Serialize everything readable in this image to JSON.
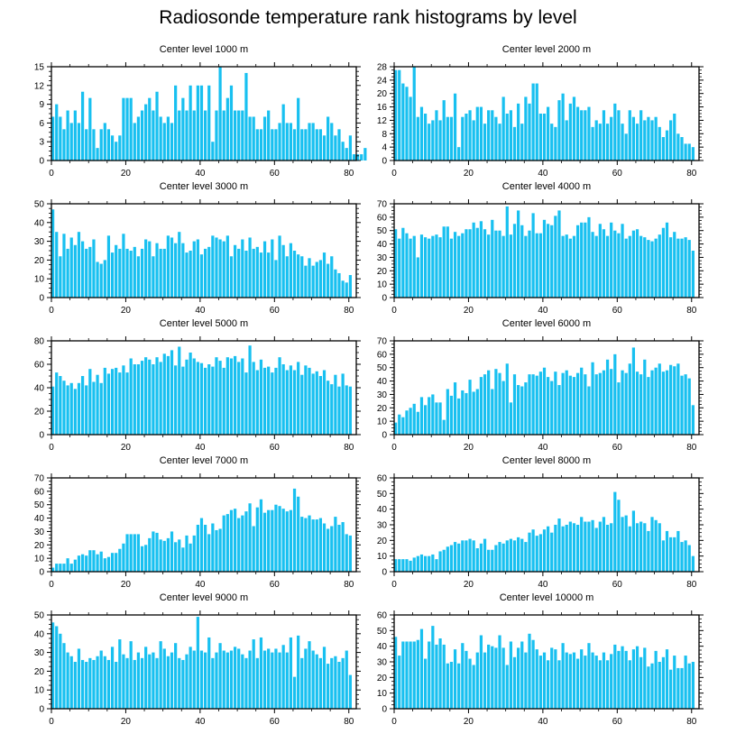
{
  "figure": {
    "title": "Radiosonde temperature rank histograms by level",
    "bar_color": "#18c0f0"
  },
  "chart_data": [
    {
      "type": "bar",
      "title": "Center level 1000 m",
      "xlim": [
        0,
        82
      ],
      "ylim": [
        0,
        15
      ],
      "yticks": [
        0,
        3,
        6,
        9,
        12,
        15
      ],
      "xticks": [
        0,
        20,
        40,
        60,
        80
      ],
      "values": [
        7,
        9,
        7,
        5,
        8,
        6,
        8,
        6,
        11,
        5,
        10,
        5,
        2,
        5,
        6,
        5,
        4,
        3,
        4,
        10,
        10,
        10,
        6,
        7,
        8,
        9,
        10,
        8,
        11,
        7,
        6,
        7,
        6,
        12,
        8,
        10,
        8,
        12,
        8,
        12,
        12,
        8,
        12,
        3,
        8,
        15,
        8,
        10,
        12,
        8,
        8,
        8,
        14,
        7,
        7,
        5,
        5,
        7,
        8,
        5,
        5,
        6,
        9,
        6,
        6,
        5,
        10,
        5,
        5,
        6,
        6,
        5,
        5,
        4,
        7,
        6,
        4,
        5,
        3,
        2,
        4,
        1,
        1,
        1,
        2
      ]
    },
    {
      "type": "bar",
      "title": "Center level 2000 m",
      "xlim": [
        0,
        82
      ],
      "ylim": [
        0,
        28
      ],
      "yticks": [
        0,
        4,
        8,
        12,
        16,
        20,
        24,
        28
      ],
      "xticks": [
        0,
        20,
        40,
        60,
        80
      ],
      "values": [
        27,
        27,
        23,
        22,
        19,
        28,
        13,
        16,
        14,
        11,
        12,
        15,
        12,
        18,
        13,
        13,
        20,
        4,
        13,
        14,
        15,
        12,
        16,
        16,
        11,
        15,
        15,
        13,
        11,
        19,
        14,
        15,
        10,
        17,
        11,
        19,
        17,
        23,
        23,
        14,
        14,
        16,
        11,
        10,
        18,
        20,
        12,
        17,
        19,
        16,
        15,
        15,
        16,
        10,
        12,
        11,
        15,
        11,
        13,
        17,
        15,
        11,
        8,
        15,
        13,
        11,
        15,
        12,
        13,
        12,
        13,
        10,
        7,
        9,
        12,
        14,
        8,
        7,
        5,
        5,
        4
      ]
    },
    {
      "type": "bar",
      "title": "Center level 3000 m",
      "xlim": [
        0,
        82
      ],
      "ylim": [
        0,
        50
      ],
      "yticks": [
        0,
        10,
        20,
        30,
        40,
        50
      ],
      "xticks": [
        0,
        20,
        40,
        60,
        80
      ],
      "values": [
        47,
        35,
        22,
        34,
        26,
        32,
        28,
        35,
        30,
        26,
        27,
        31,
        19,
        18,
        20,
        33,
        24,
        28,
        26,
        34,
        26,
        25,
        27,
        22,
        26,
        31,
        30,
        22,
        29,
        26,
        26,
        33,
        32,
        29,
        35,
        29,
        24,
        25,
        30,
        31,
        23,
        26,
        27,
        33,
        32,
        31,
        30,
        33,
        22,
        28,
        26,
        31,
        25,
        32,
        26,
        27,
        24,
        30,
        24,
        31,
        20,
        33,
        28,
        22,
        29,
        25,
        23,
        22,
        17,
        21,
        17,
        19,
        20,
        24,
        18,
        22,
        15,
        13,
        9,
        8,
        12
      ]
    },
    {
      "type": "bar",
      "title": "Center level 4000 m",
      "xlim": [
        0,
        82
      ],
      "ylim": [
        0,
        70
      ],
      "yticks": [
        0,
        10,
        20,
        30,
        40,
        50,
        60,
        70
      ],
      "xticks": [
        0,
        20,
        40,
        60,
        80
      ],
      "values": [
        51,
        44,
        52,
        48,
        44,
        46,
        30,
        47,
        45,
        44,
        46,
        47,
        45,
        53,
        53,
        44,
        49,
        46,
        48,
        51,
        51,
        56,
        52,
        57,
        51,
        47,
        58,
        50,
        50,
        46,
        68,
        47,
        55,
        65,
        54,
        46,
        50,
        63,
        48,
        48,
        58,
        55,
        54,
        61,
        65,
        46,
        47,
        44,
        46,
        54,
        56,
        56,
        60,
        49,
        46,
        55,
        51,
        46,
        56,
        50,
        48,
        55,
        44,
        46,
        50,
        51,
        46,
        45,
        43,
        42,
        44,
        47,
        52,
        56,
        45,
        49,
        44,
        44,
        45,
        43,
        35
      ]
    },
    {
      "type": "bar",
      "title": "Center level 5000 m",
      "xlim": [
        0,
        82
      ],
      "ylim": [
        0,
        80
      ],
      "yticks": [
        0,
        20,
        40,
        60,
        80
      ],
      "xticks": [
        0,
        20,
        40,
        60,
        80
      ],
      "values": [
        41,
        53,
        50,
        46,
        42,
        44,
        39,
        44,
        50,
        42,
        56,
        45,
        51,
        44,
        57,
        52,
        56,
        57,
        53,
        59,
        53,
        65,
        60,
        60,
        63,
        66,
        64,
        60,
        66,
        62,
        69,
        67,
        72,
        59,
        75,
        58,
        64,
        70,
        65,
        62,
        61,
        57,
        60,
        58,
        66,
        63,
        57,
        66,
        65,
        67,
        62,
        65,
        53,
        76,
        62,
        55,
        64,
        57,
        58,
        53,
        57,
        66,
        60,
        55,
        59,
        55,
        62,
        51,
        59,
        57,
        52,
        54,
        50,
        55,
        46,
        43,
        51,
        41,
        52,
        42,
        41
      ]
    },
    {
      "type": "bar",
      "title": "Center level 6000 m",
      "xlim": [
        0,
        82
      ],
      "ylim": [
        0,
        70
      ],
      "yticks": [
        0,
        10,
        20,
        30,
        40,
        50,
        60,
        70
      ],
      "xticks": [
        0,
        20,
        40,
        60,
        80
      ],
      "values": [
        9,
        15,
        13,
        18,
        20,
        23,
        17,
        28,
        22,
        28,
        30,
        24,
        24,
        11,
        34,
        29,
        39,
        27,
        33,
        31,
        41,
        32,
        34,
        43,
        45,
        48,
        34,
        49,
        46,
        40,
        53,
        24,
        45,
        37,
        36,
        39,
        45,
        45,
        44,
        47,
        50,
        43,
        40,
        47,
        37,
        46,
        48,
        44,
        43,
        46,
        50,
        45,
        36,
        54,
        45,
        46,
        48,
        56,
        49,
        60,
        39,
        48,
        46,
        53,
        65,
        47,
        45,
        56,
        43,
        48,
        50,
        53,
        47,
        48,
        52,
        51,
        53,
        44,
        45,
        42,
        22
      ]
    },
    {
      "type": "bar",
      "title": "Center level 7000 m",
      "xlim": [
        0,
        82
      ],
      "ylim": [
        0,
        70
      ],
      "yticks": [
        0,
        10,
        20,
        30,
        40,
        50,
        60,
        70
      ],
      "xticks": [
        0,
        20,
        40,
        60,
        80
      ],
      "values": [
        3,
        6,
        6,
        6,
        10,
        6,
        9,
        12,
        13,
        12,
        16,
        16,
        13,
        15,
        10,
        11,
        14,
        14,
        17,
        21,
        28,
        28,
        28,
        28,
        19,
        20,
        25,
        30,
        29,
        24,
        23,
        25,
        30,
        22,
        24,
        18,
        27,
        21,
        27,
        35,
        40,
        35,
        28,
        36,
        31,
        32,
        42,
        43,
        46,
        47,
        40,
        42,
        45,
        51,
        34,
        48,
        54,
        44,
        46,
        46,
        50,
        49,
        47,
        45,
        46,
        62,
        56,
        41,
        40,
        42,
        39,
        39,
        40,
        36,
        32,
        34,
        41,
        35,
        37,
        28,
        27
      ]
    },
    {
      "type": "bar",
      "title": "Center level 8000 m",
      "xlim": [
        0,
        82
      ],
      "ylim": [
        0,
        60
      ],
      "yticks": [
        0,
        10,
        20,
        30,
        40,
        50,
        60
      ],
      "xticks": [
        0,
        20,
        40,
        60,
        80
      ],
      "values": [
        8,
        8,
        8,
        8,
        7,
        9,
        10,
        11,
        10,
        10,
        11,
        8,
        13,
        14,
        16,
        17,
        19,
        18,
        20,
        20,
        21,
        20,
        15,
        18,
        21,
        14,
        14,
        17,
        19,
        18,
        20,
        21,
        20,
        22,
        21,
        19,
        25,
        27,
        23,
        24,
        27,
        29,
        25,
        30,
        34,
        29,
        30,
        32,
        31,
        30,
        35,
        32,
        32,
        33,
        28,
        32,
        35,
        30,
        31,
        51,
        46,
        35,
        36,
        29,
        39,
        31,
        32,
        31,
        26,
        35,
        33,
        31,
        20,
        26,
        22,
        22,
        26,
        19,
        20,
        17,
        10
      ]
    },
    {
      "type": "bar",
      "title": "Center level 9000 m",
      "xlim": [
        0,
        82
      ],
      "ylim": [
        0,
        50
      ],
      "yticks": [
        0,
        10,
        20,
        30,
        40,
        50
      ],
      "xticks": [
        0,
        20,
        40,
        60,
        80
      ],
      "values": [
        46,
        44,
        40,
        35,
        30,
        28,
        25,
        32,
        26,
        25,
        27,
        26,
        28,
        31,
        28,
        26,
        33,
        25,
        37,
        29,
        27,
        36,
        26,
        30,
        27,
        33,
        29,
        30,
        27,
        36,
        32,
        28,
        30,
        35,
        27,
        26,
        29,
        33,
        31,
        49,
        31,
        30,
        38,
        27,
        30,
        35,
        31,
        30,
        31,
        33,
        32,
        29,
        27,
        31,
        37,
        27,
        38,
        31,
        32,
        30,
        32,
        30,
        34,
        30,
        38,
        17,
        39,
        27,
        32,
        36,
        31,
        29,
        27,
        33,
        24,
        27,
        28,
        25,
        27,
        31,
        18
      ]
    },
    {
      "type": "bar",
      "title": "Center level 10000 m",
      "xlim": [
        0,
        82
      ],
      "ylim": [
        0,
        60
      ],
      "yticks": [
        0,
        10,
        20,
        30,
        40,
        50,
        60
      ],
      "xticks": [
        0,
        20,
        40,
        60,
        80
      ],
      "values": [
        46,
        34,
        43,
        43,
        43,
        43,
        44,
        51,
        32,
        43,
        53,
        41,
        45,
        41,
        29,
        30,
        38,
        29,
        42,
        37,
        32,
        28,
        36,
        47,
        36,
        41,
        40,
        39,
        47,
        39,
        28,
        43,
        33,
        39,
        43,
        36,
        48,
        44,
        38,
        34,
        36,
        31,
        39,
        38,
        31,
        42,
        36,
        35,
        36,
        32,
        38,
        34,
        42,
        36,
        34,
        31,
        36,
        31,
        35,
        41,
        37,
        40,
        37,
        31,
        38,
        40,
        33,
        39,
        27,
        29,
        37,
        30,
        33,
        38,
        25,
        34,
        26,
        26,
        34,
        29,
        30
      ]
    }
  ]
}
